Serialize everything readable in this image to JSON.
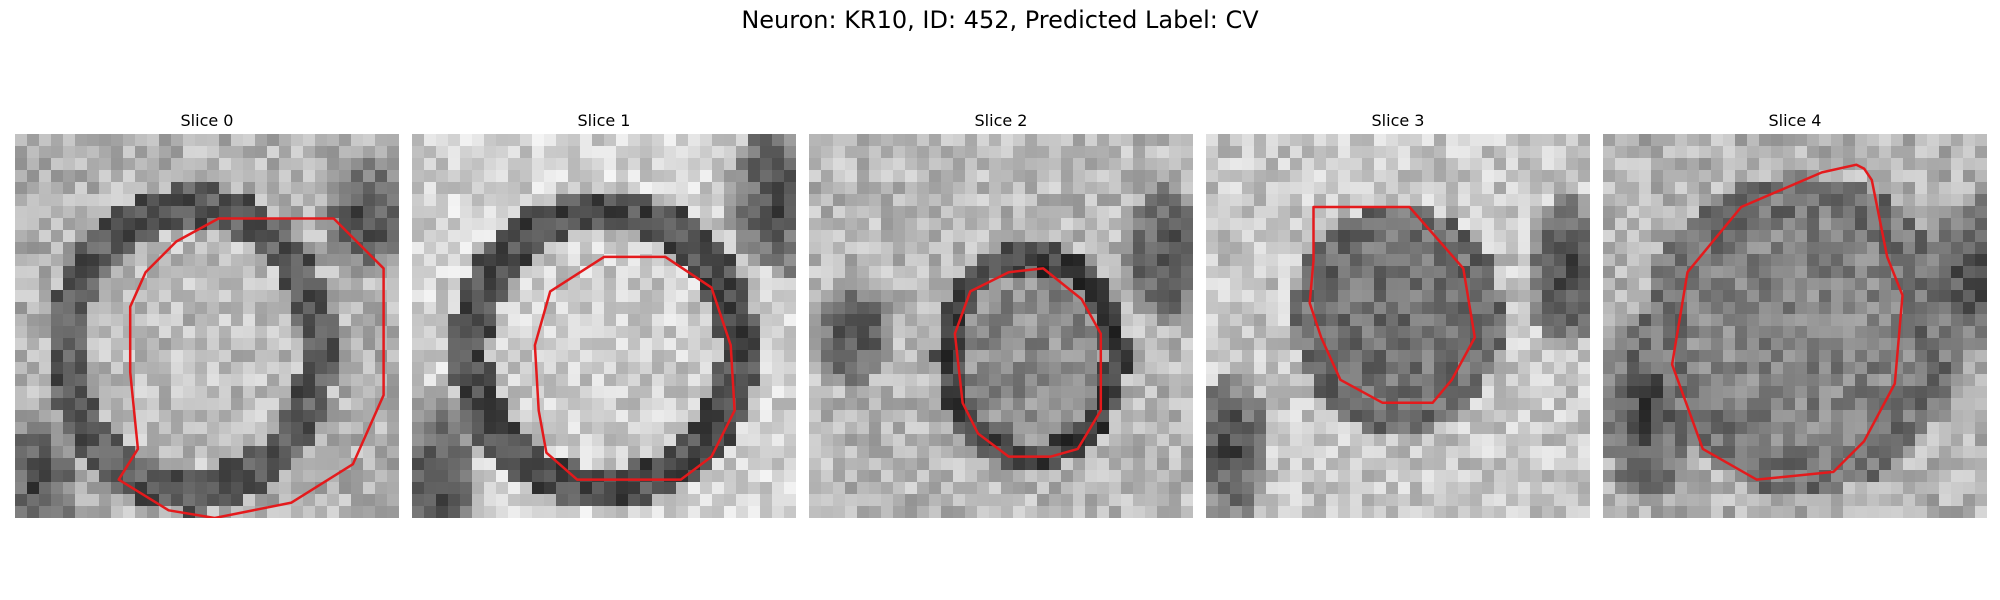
{
  "figure": {
    "title": "Neuron: KR10, ID: 452, Predicted Label: CV",
    "outline_color": "#e41a1c"
  },
  "slices": [
    {
      "title": "Slice 0"
    },
    {
      "title": "Slice 1"
    },
    {
      "title": "Slice 2"
    },
    {
      "title": "Slice 3"
    },
    {
      "title": "Slice 4"
    }
  ]
}
